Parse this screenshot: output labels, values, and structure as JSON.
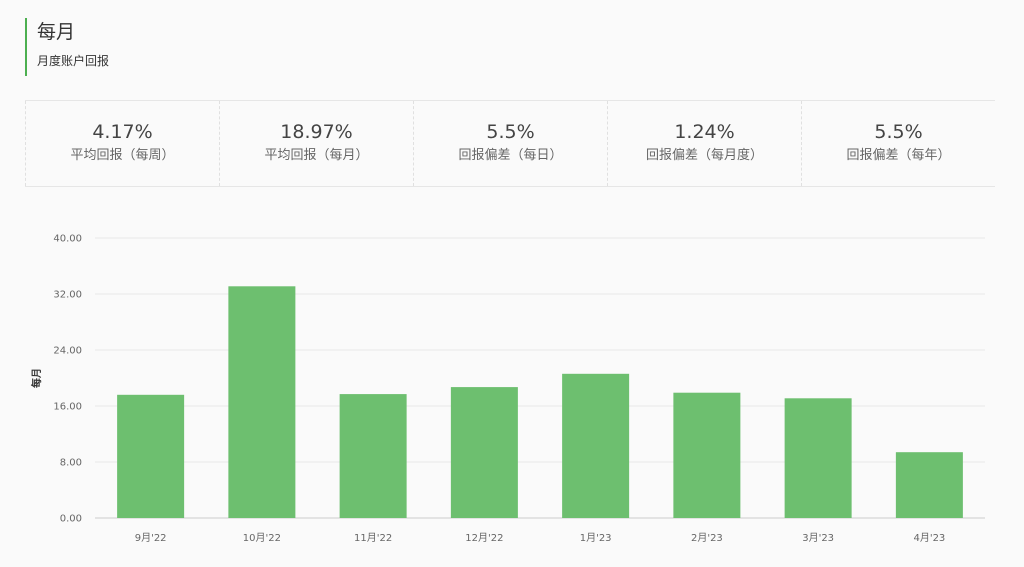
{
  "header": {
    "title": "每月",
    "subtitle": "月度账户回报"
  },
  "stats": [
    {
      "value": "4.17%",
      "label": "平均回报（每周）"
    },
    {
      "value": "18.97%",
      "label": "平均回报（每月）"
    },
    {
      "value": "5.5%",
      "label": "回报偏差（每日）"
    },
    {
      "value": "1.24%",
      "label": "回报偏差（每月度）"
    },
    {
      "value": "5.5%",
      "label": "回报偏差（每年）"
    }
  ],
  "colors": {
    "accent": "#4caf50",
    "bar": "#6dbf6f"
  },
  "chart_data": {
    "type": "bar",
    "categories": [
      "9月'22",
      "10月'22",
      "11月'22",
      "12月'22",
      "1月'23",
      "2月'23",
      "3月'23",
      "4月'23"
    ],
    "values": [
      17.6,
      33.1,
      17.7,
      18.7,
      20.6,
      17.9,
      17.1,
      9.4
    ],
    "ylabel": "每月",
    "ylim": [
      0,
      40
    ],
    "yticks": [
      "0.00",
      "8.00",
      "16.00",
      "24.00",
      "32.00",
      "40.00"
    ],
    "grid": true
  }
}
